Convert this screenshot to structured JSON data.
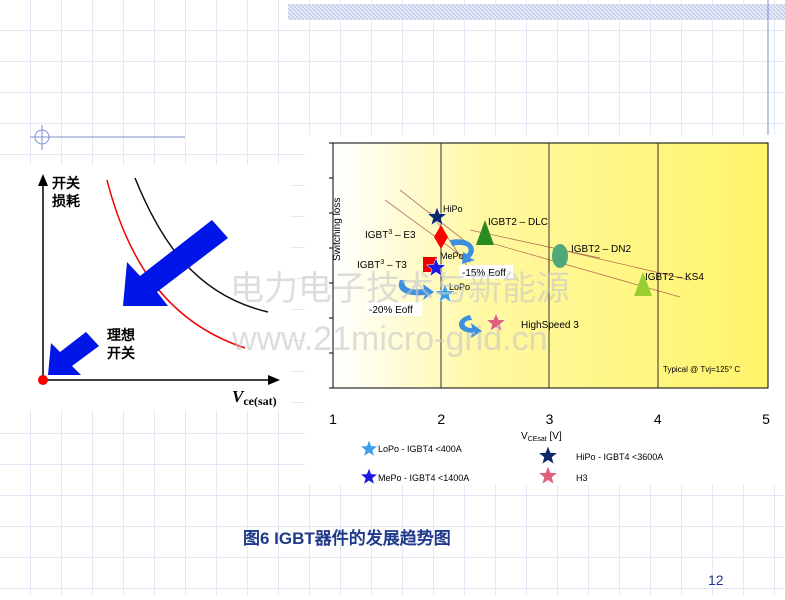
{
  "left_diagram": {
    "y_label": [
      "开关",
      "损耗"
    ],
    "ideal_label": [
      "理想",
      "开关"
    ],
    "x_label": "V",
    "x_label_sub": "ce(sat)"
  },
  "right_chart": {
    "y_label": "Switching loss",
    "x_label": "V",
    "x_label_sub": "CEsat",
    "x_label_unit": " [V]",
    "x_ticks": [
      "1",
      "2",
      "3",
      "4",
      "5"
    ],
    "labels": {
      "hipo": "HiPo",
      "dlc": "IGBT2 – DLC",
      "e3": [
        "IGBT",
        "3",
        " – E3"
      ],
      "mepo": "MePo",
      "t3": [
        "IGBT",
        "3",
        " – T3"
      ],
      "eoff15": "-15% Eoff",
      "lopo": "LoPo",
      "eoff20": "-20% Eoff",
      "dn2": "IGBT2 – DN2",
      "ks4": "IGBT2 – KS4",
      "hs3": "HighSpeed 3"
    },
    "note": "Typical @ Tvj=125° C",
    "legend": [
      "LoPo - IGBT4   <400A",
      "MePo - IGBT4 <1400A",
      "HiPo - IGBT4  <3600A",
      "H3"
    ]
  },
  "watermark": [
    "电力电子技术与新能源",
    "www.21micro-grid.cn"
  ],
  "caption": "图6  IGBT器件的发展趋势图",
  "page_number": "12"
}
